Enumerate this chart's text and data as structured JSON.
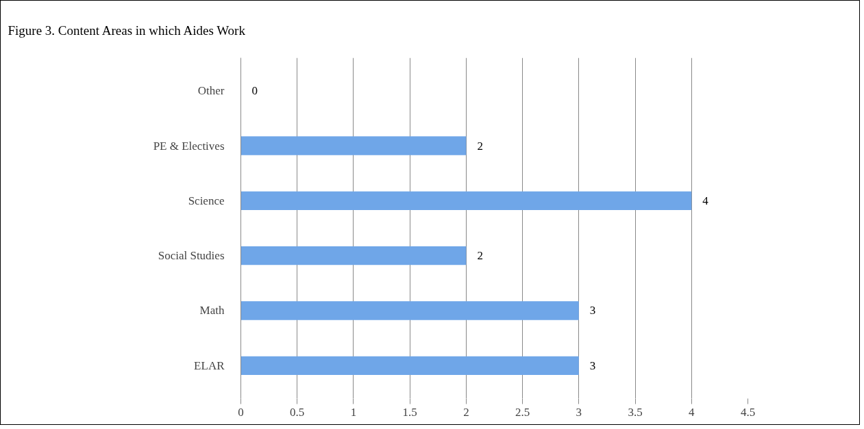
{
  "chart_data": {
    "type": "bar",
    "orientation": "horizontal",
    "title": "Figure 3.  Content Areas in which Aides Work",
    "categories": [
      "Other",
      "PE & Electives",
      "Science",
      "Social Studies",
      "Math",
      "ELAR"
    ],
    "values": [
      0,
      2,
      4,
      2,
      3,
      3
    ],
    "color": "#6fa6e8",
    "xlim": [
      0,
      4.5
    ],
    "xticks": [
      0,
      0.5,
      1,
      1.5,
      2,
      2.5,
      3,
      3.5,
      4,
      4.5
    ],
    "grid": "x",
    "data_labels": true
  }
}
